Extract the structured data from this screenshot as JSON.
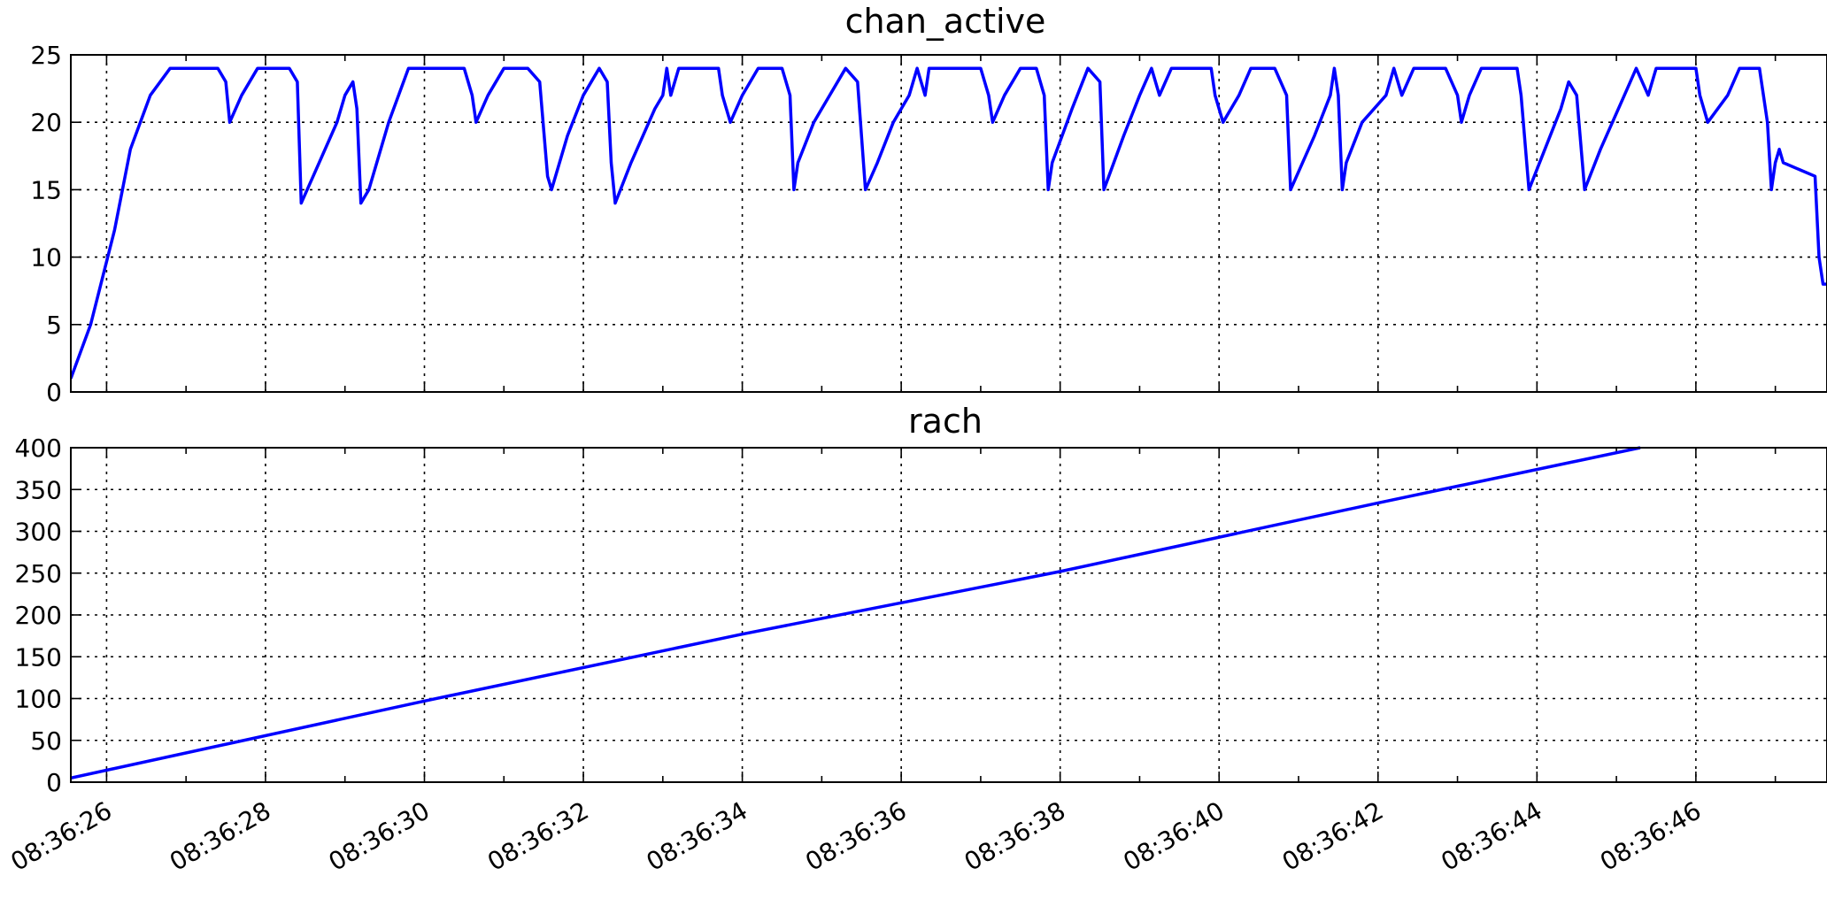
{
  "chart_data": [
    {
      "type": "line",
      "title": "chan_active",
      "x_unit": "seconds after 08:36:00",
      "xlim": [
        25.55,
        47.65
      ],
      "ylim": [
        0,
        25
      ],
      "yticks": [
        0,
        5,
        10,
        15,
        20,
        25
      ],
      "grid": true,
      "series": [
        {
          "color": "#0000ff",
          "points": [
            [
              25.55,
              1
            ],
            [
              25.8,
              5
            ],
            [
              26.1,
              12
            ],
            [
              26.3,
              18
            ],
            [
              26.55,
              22
            ],
            [
              26.8,
              24
            ],
            [
              27.4,
              24
            ],
            [
              27.5,
              23
            ],
            [
              27.55,
              20
            ],
            [
              27.7,
              22
            ],
            [
              27.9,
              24
            ],
            [
              28.1,
              24
            ],
            [
              28.3,
              24
            ],
            [
              28.4,
              23
            ],
            [
              28.45,
              14
            ],
            [
              28.6,
              16
            ],
            [
              28.9,
              20
            ],
            [
              29,
              22
            ],
            [
              29.1,
              23
            ],
            [
              29.15,
              21
            ],
            [
              29.2,
              14
            ],
            [
              29.3,
              15
            ],
            [
              29.55,
              20
            ],
            [
              29.8,
              24
            ],
            [
              30.5,
              24
            ],
            [
              30.6,
              22
            ],
            [
              30.65,
              20
            ],
            [
              30.8,
              22
            ],
            [
              31,
              24
            ],
            [
              31.3,
              24
            ],
            [
              31.45,
              23
            ],
            [
              31.55,
              16
            ],
            [
              31.6,
              15
            ],
            [
              31.8,
              19
            ],
            [
              32,
              22
            ],
            [
              32.2,
              24
            ],
            [
              32.3,
              23
            ],
            [
              32.35,
              17
            ],
            [
              32.4,
              14
            ],
            [
              32.6,
              17
            ],
            [
              32.9,
              21
            ],
            [
              33,
              22
            ],
            [
              33.05,
              24
            ],
            [
              33.1,
              22
            ],
            [
              33.2,
              24
            ],
            [
              33.7,
              24
            ],
            [
              33.75,
              22
            ],
            [
              33.85,
              20
            ],
            [
              34,
              22
            ],
            [
              34.2,
              24
            ],
            [
              34.5,
              24
            ],
            [
              34.6,
              22
            ],
            [
              34.65,
              15
            ],
            [
              34.7,
              17
            ],
            [
              34.9,
              20
            ],
            [
              35.1,
              22
            ],
            [
              35.3,
              24
            ],
            [
              35.45,
              23
            ],
            [
              35.55,
              15
            ],
            [
              35.7,
              17
            ],
            [
              35.9,
              20
            ],
            [
              36.1,
              22
            ],
            [
              36.2,
              24
            ],
            [
              36.3,
              22
            ],
            [
              36.35,
              24
            ],
            [
              36.55,
              24
            ],
            [
              36.8,
              24
            ],
            [
              37,
              24
            ],
            [
              37.1,
              22
            ],
            [
              37.15,
              20
            ],
            [
              37.3,
              22
            ],
            [
              37.5,
              24
            ],
            [
              37.7,
              24
            ],
            [
              37.8,
              22
            ],
            [
              37.85,
              15
            ],
            [
              37.9,
              17
            ],
            [
              38.15,
              21
            ],
            [
              38.35,
              24
            ],
            [
              38.5,
              23
            ],
            [
              38.55,
              15
            ],
            [
              38.8,
              19
            ],
            [
              39,
              22
            ],
            [
              39.15,
              24
            ],
            [
              39.25,
              22
            ],
            [
              39.4,
              24
            ],
            [
              39.9,
              24
            ],
            [
              39.95,
              22
            ],
            [
              40.05,
              20
            ],
            [
              40.25,
              22
            ],
            [
              40.4,
              24
            ],
            [
              40.7,
              24
            ],
            [
              40.85,
              22
            ],
            [
              40.9,
              15
            ],
            [
              41.2,
              19
            ],
            [
              41.4,
              22
            ],
            [
              41.45,
              24
            ],
            [
              41.5,
              22
            ],
            [
              41.55,
              15
            ],
            [
              41.6,
              17
            ],
            [
              41.8,
              20
            ],
            [
              42.1,
              22
            ],
            [
              42.2,
              24
            ],
            [
              42.3,
              22
            ],
            [
              42.45,
              24
            ],
            [
              42.85,
              24
            ],
            [
              43,
              22
            ],
            [
              43.05,
              20
            ],
            [
              43.15,
              22
            ],
            [
              43.3,
              24
            ],
            [
              43.75,
              24
            ],
            [
              43.8,
              22
            ],
            [
              43.9,
              15
            ],
            [
              44.1,
              18
            ],
            [
              44.3,
              21
            ],
            [
              44.4,
              23
            ],
            [
              44.5,
              22
            ],
            [
              44.6,
              15
            ],
            [
              44.8,
              18
            ],
            [
              45.1,
              22
            ],
            [
              45.25,
              24
            ],
            [
              45.4,
              22
            ],
            [
              45.5,
              24
            ],
            [
              46,
              24
            ],
            [
              46.05,
              22
            ],
            [
              46.15,
              20
            ],
            [
              46.4,
              22
            ],
            [
              46.55,
              24
            ],
            [
              46.8,
              24
            ],
            [
              46.9,
              20
            ],
            [
              46.95,
              15
            ],
            [
              47,
              17
            ],
            [
              47.05,
              18
            ],
            [
              47.1,
              17
            ],
            [
              47.5,
              16
            ],
            [
              47.55,
              10
            ],
            [
              47.6,
              8
            ],
            [
              47.65,
              8
            ]
          ]
        }
      ]
    },
    {
      "type": "line",
      "title": "rach",
      "x_unit": "seconds after 08:36:00",
      "xlim": [
        25.55,
        47.65
      ],
      "ylim": [
        0,
        400
      ],
      "yticks": [
        0,
        50,
        100,
        150,
        200,
        250,
        300,
        350,
        400
      ],
      "xticks": [
        "08:36:26",
        "08:36:28",
        "08:36:30",
        "08:36:32",
        "08:36:34",
        "08:36:36",
        "08:36:38",
        "08:36:40",
        "08:36:42",
        "08:36:44",
        "08:36:46"
      ],
      "grid": true,
      "series": [
        {
          "color": "#0000ff",
          "points": [
            [
              25.55,
              5
            ],
            [
              30,
              97
            ],
            [
              34,
              177
            ],
            [
              38,
              252
            ],
            [
              42,
              334
            ],
            [
              45.3,
              400
            ]
          ]
        }
      ]
    }
  ]
}
